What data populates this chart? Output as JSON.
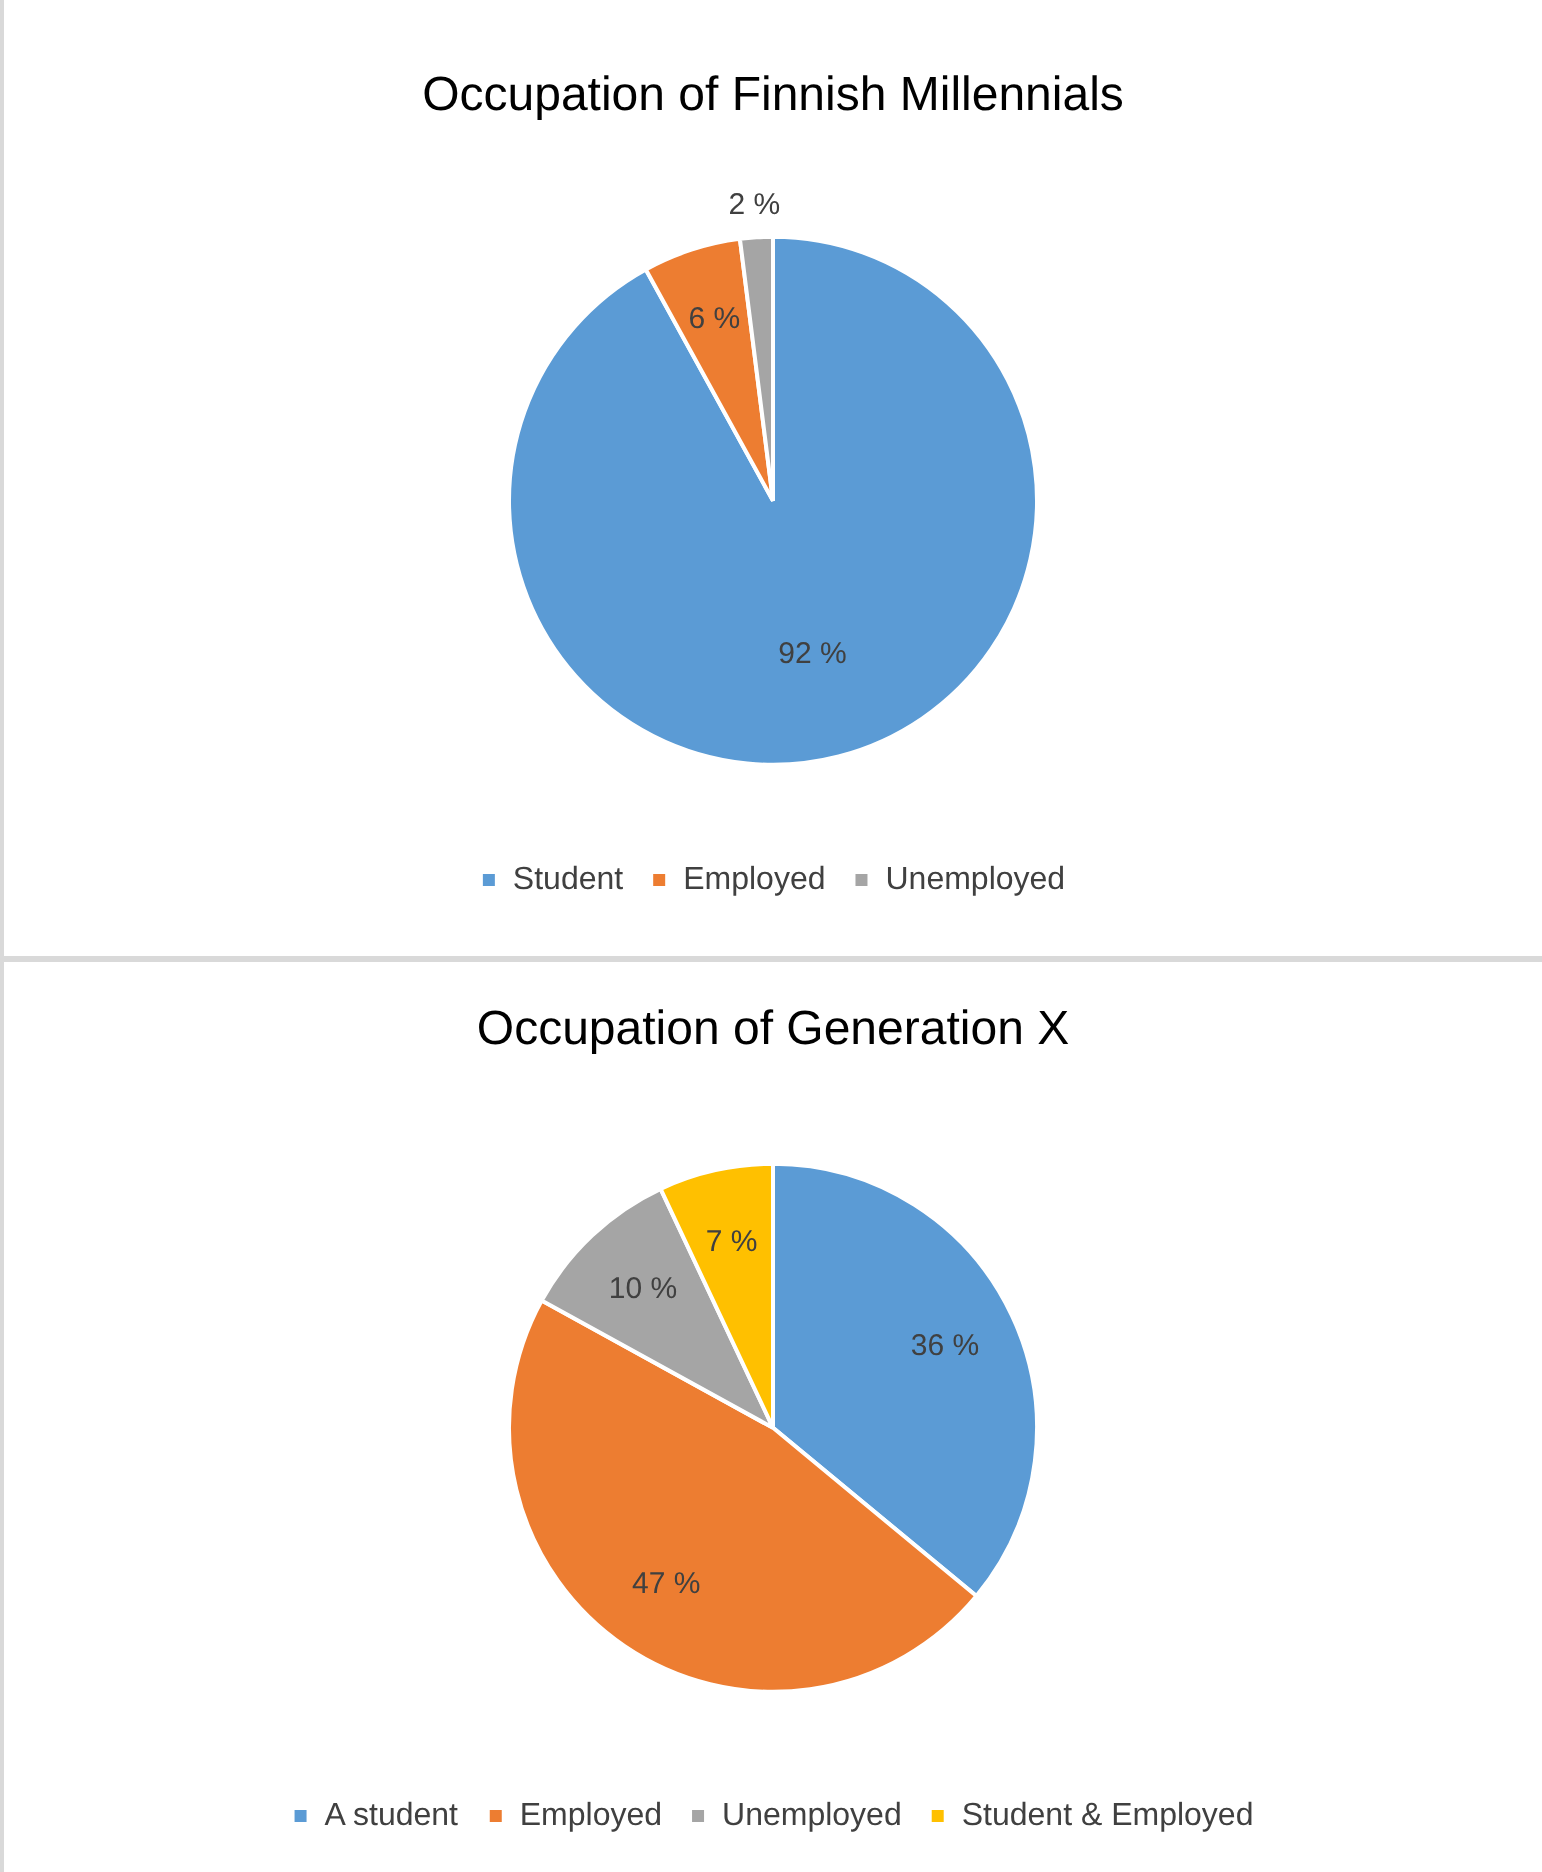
{
  "chart_data": [
    {
      "type": "pie",
      "title": "Occupation of Finnish Millennials",
      "categories": [
        "Student",
        "Employed",
        "Unemployed"
      ],
      "values": [
        92,
        6,
        2
      ],
      "colors": [
        "#5b9bd5",
        "#ed7d31",
        "#a5a5a5"
      ],
      "value_labels": [
        "92 %",
        "6 %",
        "2 %"
      ],
      "legend": "bottom"
    },
    {
      "type": "pie",
      "title": "Occupation of Generation X",
      "categories": [
        "A student",
        "Employed",
        "Unemployed",
        "Student & Employed"
      ],
      "values": [
        36,
        47,
        10,
        7
      ],
      "colors": [
        "#5b9bd5",
        "#ed7d31",
        "#a5a5a5",
        "#ffc000"
      ],
      "value_labels": [
        "36 %",
        "47 %",
        "10 %",
        "7 %"
      ],
      "legend": "bottom"
    }
  ]
}
